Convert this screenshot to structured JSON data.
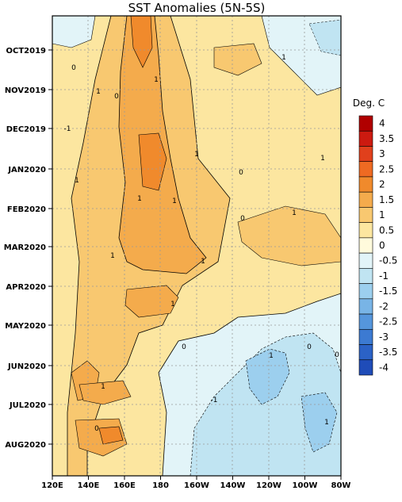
{
  "chart_data": {
    "type": "heatmap",
    "title": "SST Anomalies (5N-5S)",
    "x_ticks": [
      "120E",
      "140E",
      "160E",
      "180",
      "160W",
      "140W",
      "120W",
      "100W",
      "80W"
    ],
    "y_ticks": [
      "OCT2019",
      "NOV2019",
      "DEC2019",
      "JAN2020",
      "FEB2020",
      "MAR2020",
      "APR2020",
      "MAY2020",
      "JUN2020",
      "JUL2020",
      "AUG2020"
    ],
    "colorbar": {
      "unit": "Deg. C",
      "levels": [
        "4",
        "3.5",
        "3",
        "2.5",
        "2",
        "1.5",
        "1",
        "0.5",
        "0",
        "-0.5",
        "-1",
        "-1.5",
        "-2",
        "-2.5",
        "-3",
        "-3.5",
        "-4"
      ],
      "colors": [
        "#b00000",
        "#cc1a10",
        "#e0401c",
        "#ee6a22",
        "#f08a2c",
        "#f4ab4c",
        "#f8c870",
        "#fce6a0",
        "#fffadc",
        "#e2f4f8",
        "#c0e4f2",
        "#9ccfee",
        "#78b4e6",
        "#5596dc",
        "#3c7ad2",
        "#2b62c6",
        "#1f4cb8"
      ]
    },
    "contour_labels": [
      "0",
      "1",
      "1",
      "0",
      "1",
      "1",
      "1",
      "1",
      "1",
      "1",
      "1",
      "0",
      "0",
      "1",
      "1",
      "1",
      "0",
      "1",
      "0",
      "-1",
      "0",
      "1",
      "0",
      "1",
      "-1"
    ],
    "grid": "dotted",
    "background_levels": [
      "0.5",
      "1",
      "1.5",
      "2",
      "0",
      "-0.5",
      "-1"
    ]
  }
}
